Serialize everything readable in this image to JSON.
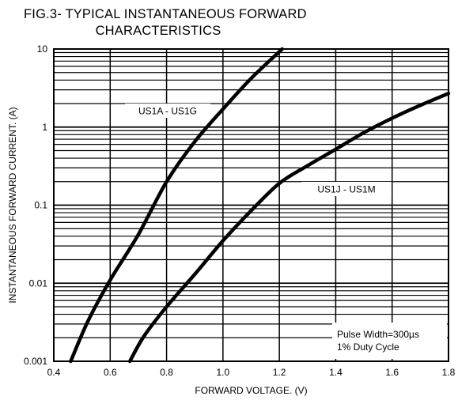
{
  "title_line1": "FIG.3- TYPICAL INSTANTANEOUS FORWARD",
  "title_line2": "CHARACTERISTICS",
  "chart_data": {
    "type": "line",
    "title": "FIG.3- TYPICAL INSTANTANEOUS FORWARD CHARACTERISTICS",
    "xlabel": "FORWARD VOLTAGE. (V)",
    "ylabel": "INSTANTANEOUS FORWARD CURRENT. (A)",
    "xlim": [
      0.4,
      1.8
    ],
    "ylim": [
      0.001,
      10
    ],
    "yscale": "log",
    "grid": true,
    "x_ticks": [
      "0.4",
      "0.6",
      "0.8",
      "1.0",
      "1.2",
      "1.4",
      "1.6",
      "1.8"
    ],
    "y_ticks": [
      "0.001",
      "0.01",
      "0.1",
      "1",
      "10"
    ],
    "series": [
      {
        "name": "US1A - US1G",
        "points": [
          [
            0.46,
            0.001
          ],
          [
            0.52,
            0.0032
          ],
          [
            0.6,
            0.011
          ],
          [
            0.7,
            0.042
          ],
          [
            0.8,
            0.2
          ],
          [
            0.9,
            0.65
          ],
          [
            1.0,
            1.7
          ],
          [
            1.1,
            4.2
          ],
          [
            1.21,
            10.0
          ]
        ]
      },
      {
        "name": "US1J - US1M",
        "points": [
          [
            0.67,
            0.001
          ],
          [
            0.72,
            0.0021
          ],
          [
            0.8,
            0.005
          ],
          [
            0.9,
            0.013
          ],
          [
            1.0,
            0.035
          ],
          [
            1.1,
            0.085
          ],
          [
            1.2,
            0.19
          ],
          [
            1.3,
            0.32
          ],
          [
            1.4,
            0.52
          ],
          [
            1.5,
            0.85
          ],
          [
            1.6,
            1.3
          ],
          [
            1.7,
            1.9
          ],
          [
            1.8,
            2.7
          ]
        ]
      }
    ],
    "annotations": [
      "Pulse Width=300µs",
      "1% Duty Cycle"
    ]
  }
}
